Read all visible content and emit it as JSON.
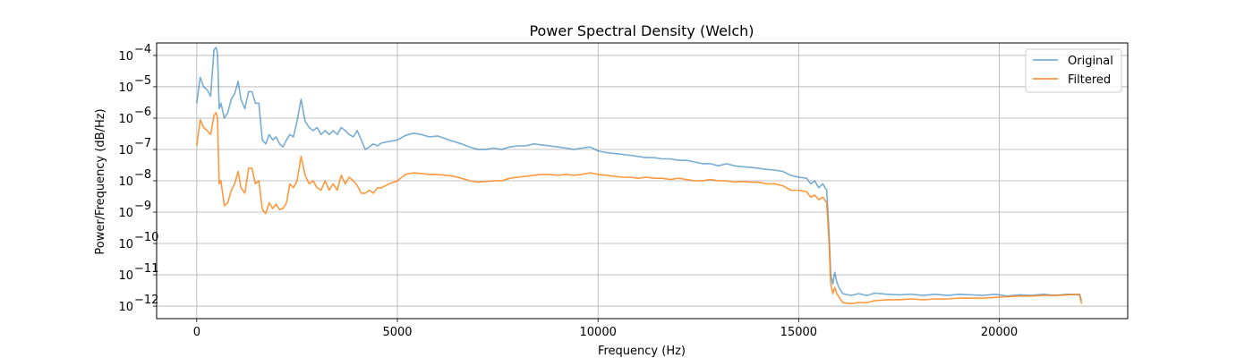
{
  "chart_data": {
    "type": "line",
    "title": "Power Spectral Density (Welch)",
    "xlabel": "Frequency (Hz)",
    "ylabel": "Power/Frequency (dB/Hz)",
    "xlim": [
      -1000,
      23200
    ],
    "ylim": [
      4e-13,
      0.00025
    ],
    "yscale": "log",
    "grid": true,
    "legend_position": "top-right",
    "x_ticks": [
      0,
      5000,
      10000,
      15000,
      20000
    ],
    "y_ticks": [
      {
        "value": 1e-12,
        "base": "10",
        "exp": "−12"
      },
      {
        "value": 1e-11,
        "base": "10",
        "exp": "−11"
      },
      {
        "value": 1e-10,
        "base": "10",
        "exp": "−10"
      },
      {
        "value": 1e-09,
        "base": "10",
        "exp": "−9"
      },
      {
        "value": 1e-08,
        "base": "10",
        "exp": "−8"
      },
      {
        "value": 1e-07,
        "base": "10",
        "exp": "−7"
      },
      {
        "value": 1e-06,
        "base": "10",
        "exp": "−6"
      },
      {
        "value": 1e-05,
        "base": "10",
        "exp": "−5"
      },
      {
        "value": 0.0001,
        "base": "10",
        "exp": "−4"
      }
    ],
    "series": [
      {
        "name": "Original",
        "color": "#1f77b4",
        "opacity": 0.6,
        "points": [
          [
            0,
            3e-06
          ],
          [
            86,
            2e-05
          ],
          [
            172,
            1e-05
          ],
          [
            258,
            8e-06
          ],
          [
            344,
            5e-06
          ],
          [
            430,
            0.00015
          ],
          [
            480,
            0.00018
          ],
          [
            516,
            0.00012
          ],
          [
            560,
            2e-06
          ],
          [
            602,
            3e-06
          ],
          [
            688,
            1e-06
          ],
          [
            774,
            1.5e-06
          ],
          [
            860,
            4e-06
          ],
          [
            946,
            6e-06
          ],
          [
            1032,
            1.5e-05
          ],
          [
            1100,
            4e-06
          ],
          [
            1200,
            2e-06
          ],
          [
            1290,
            7e-06
          ],
          [
            1376,
            7e-06
          ],
          [
            1462,
            3e-06
          ],
          [
            1548,
            3e-06
          ],
          [
            1634,
            2e-07
          ],
          [
            1720,
            1.5e-07
          ],
          [
            1806,
            3e-07
          ],
          [
            1892,
            2e-07
          ],
          [
            1978,
            2.5e-07
          ],
          [
            2064,
            1.5e-07
          ],
          [
            2150,
            1.2e-07
          ],
          [
            2236,
            2e-07
          ],
          [
            2322,
            3e-07
          ],
          [
            2408,
            2.5e-07
          ],
          [
            2500,
            8e-07
          ],
          [
            2600,
            4e-06
          ],
          [
            2700,
            8e-07
          ],
          [
            2800,
            5e-07
          ],
          [
            2900,
            4e-07
          ],
          [
            3000,
            5e-07
          ],
          [
            3100,
            3e-07
          ],
          [
            3200,
            4e-07
          ],
          [
            3300,
            3e-07
          ],
          [
            3400,
            4e-07
          ],
          [
            3500,
            3e-07
          ],
          [
            3600,
            5e-07
          ],
          [
            3700,
            4e-07
          ],
          [
            3800,
            3e-07
          ],
          [
            3900,
            2.5e-07
          ],
          [
            4000,
            4e-07
          ],
          [
            4100,
            2e-07
          ],
          [
            4200,
            1e-07
          ],
          [
            4300,
            1.2e-07
          ],
          [
            4400,
            1.5e-07
          ],
          [
            4500,
            1.3e-07
          ],
          [
            4600,
            1.6e-07
          ],
          [
            4800,
            1.8e-07
          ],
          [
            5000,
            2e-07
          ],
          [
            5200,
            2.8e-07
          ],
          [
            5400,
            3.3e-07
          ],
          [
            5600,
            3e-07
          ],
          [
            5800,
            2.5e-07
          ],
          [
            6000,
            2.7e-07
          ],
          [
            6200,
            2.2e-07
          ],
          [
            6400,
            1.8e-07
          ],
          [
            6600,
            1.5e-07
          ],
          [
            6800,
            1.2e-07
          ],
          [
            7000,
            1e-07
          ],
          [
            7200,
            1e-07
          ],
          [
            7400,
            1.1e-07
          ],
          [
            7600,
            1e-07
          ],
          [
            7800,
            1.2e-07
          ],
          [
            8000,
            1.3e-07
          ],
          [
            8200,
            1.3e-07
          ],
          [
            8400,
            1.5e-07
          ],
          [
            8600,
            1.4e-07
          ],
          [
            8800,
            1.3e-07
          ],
          [
            9000,
            1.2e-07
          ],
          [
            9200,
            1.1e-07
          ],
          [
            9400,
            1e-07
          ],
          [
            9600,
            1.1e-07
          ],
          [
            9800,
            1.2e-07
          ],
          [
            10000,
            9e-08
          ],
          [
            10200,
            8e-08
          ],
          [
            10400,
            7.5e-08
          ],
          [
            10600,
            7e-08
          ],
          [
            10800,
            6.5e-08
          ],
          [
            11000,
            6e-08
          ],
          [
            11200,
            5.5e-08
          ],
          [
            11400,
            5.5e-08
          ],
          [
            11600,
            5e-08
          ],
          [
            11800,
            5e-08
          ],
          [
            12000,
            4.5e-08
          ],
          [
            12200,
            4.5e-08
          ],
          [
            12400,
            4e-08
          ],
          [
            12600,
            3.5e-08
          ],
          [
            12800,
            3.5e-08
          ],
          [
            13000,
            3e-08
          ],
          [
            13200,
            3.5e-08
          ],
          [
            13400,
            3e-08
          ],
          [
            13600,
            2.8e-08
          ],
          [
            13800,
            2.7e-08
          ],
          [
            14000,
            2.5e-08
          ],
          [
            14200,
            2.3e-08
          ],
          [
            14400,
            2.2e-08
          ],
          [
            14600,
            2e-08
          ],
          [
            14800,
            1.5e-08
          ],
          [
            15000,
            1.3e-08
          ],
          [
            15200,
            1.2e-08
          ],
          [
            15300,
            8e-09
          ],
          [
            15400,
            1e-08
          ],
          [
            15500,
            6e-09
          ],
          [
            15600,
            8e-09
          ],
          [
            15700,
            5e-09
          ],
          [
            15760,
            2e-10
          ],
          [
            15800,
            1e-11
          ],
          [
            15850,
            5e-12
          ],
          [
            15900,
            1.2e-11
          ],
          [
            15950,
            6e-12
          ],
          [
            16000,
            4e-12
          ],
          [
            16100,
            2.5e-12
          ],
          [
            16300,
            2.2e-12
          ],
          [
            16500,
            2.5e-12
          ],
          [
            16700,
            2.2e-12
          ],
          [
            16900,
            2.6e-12
          ],
          [
            17200,
            2.4e-12
          ],
          [
            17500,
            2.3e-12
          ],
          [
            17800,
            2.4e-12
          ],
          [
            18100,
            2.2e-12
          ],
          [
            18400,
            2.4e-12
          ],
          [
            18700,
            2.2e-12
          ],
          [
            19000,
            2.4e-12
          ],
          [
            19300,
            2.3e-12
          ],
          [
            19600,
            2.2e-12
          ],
          [
            19900,
            2.4e-12
          ],
          [
            20200,
            2.1e-12
          ],
          [
            20500,
            2.3e-12
          ],
          [
            20800,
            2.2e-12
          ],
          [
            21100,
            2.4e-12
          ],
          [
            21400,
            2.2e-12
          ],
          [
            21700,
            2.4e-12
          ],
          [
            22000,
            2.3e-12
          ],
          [
            22050,
            1.5e-12
          ]
        ]
      },
      {
        "name": "Filtered",
        "color": "#ff7f0e",
        "opacity": 0.8,
        "points": [
          [
            0,
            1.3e-07
          ],
          [
            86,
            9e-07
          ],
          [
            172,
            5e-07
          ],
          [
            258,
            4e-07
          ],
          [
            344,
            3e-07
          ],
          [
            430,
            1.2e-06
          ],
          [
            480,
            1.5e-06
          ],
          [
            516,
            1e-06
          ],
          [
            560,
            8e-09
          ],
          [
            602,
            1e-08
          ],
          [
            688,
            1.6e-09
          ],
          [
            774,
            2e-09
          ],
          [
            860,
            5e-09
          ],
          [
            946,
            8e-09
          ],
          [
            1032,
            2e-08
          ],
          [
            1100,
            6e-09
          ],
          [
            1200,
            4e-09
          ],
          [
            1290,
            2.5e-08
          ],
          [
            1376,
            2.5e-08
          ],
          [
            1462,
            8e-09
          ],
          [
            1548,
            1e-08
          ],
          [
            1634,
            1.2e-09
          ],
          [
            1720,
            9e-10
          ],
          [
            1806,
            2e-09
          ],
          [
            1892,
            1.3e-09
          ],
          [
            1978,
            1.8e-09
          ],
          [
            2064,
            1.2e-09
          ],
          [
            2150,
            1.3e-09
          ],
          [
            2236,
            2e-09
          ],
          [
            2322,
            8e-09
          ],
          [
            2408,
            6e-09
          ],
          [
            2500,
            1e-08
          ],
          [
            2600,
            6e-08
          ],
          [
            2700,
            1.5e-08
          ],
          [
            2800,
            8e-09
          ],
          [
            2900,
            1e-08
          ],
          [
            3000,
            6e-09
          ],
          [
            3100,
            5e-09
          ],
          [
            3200,
            1e-08
          ],
          [
            3300,
            5e-09
          ],
          [
            3400,
            8e-09
          ],
          [
            3500,
            5e-09
          ],
          [
            3600,
            1.5e-08
          ],
          [
            3700,
            8e-09
          ],
          [
            3800,
            1.3e-08
          ],
          [
            3900,
            1e-08
          ],
          [
            4000,
            7e-09
          ],
          [
            4100,
            4e-09
          ],
          [
            4200,
            4e-09
          ],
          [
            4300,
            5e-09
          ],
          [
            4400,
            4e-09
          ],
          [
            4500,
            6e-09
          ],
          [
            4600,
            6e-09
          ],
          [
            4800,
            8e-09
          ],
          [
            5000,
            1e-08
          ],
          [
            5200,
            1.6e-08
          ],
          [
            5400,
            1.8e-08
          ],
          [
            5600,
            1.7e-08
          ],
          [
            5800,
            1.6e-08
          ],
          [
            6000,
            1.6e-08
          ],
          [
            6200,
            1.5e-08
          ],
          [
            6400,
            1.4e-08
          ],
          [
            6600,
            1.2e-08
          ],
          [
            6800,
            1e-08
          ],
          [
            7000,
            9e-09
          ],
          [
            7200,
            9.5e-09
          ],
          [
            7400,
            1e-08
          ],
          [
            7600,
            1e-08
          ],
          [
            7800,
            1.2e-08
          ],
          [
            8000,
            1.3e-08
          ],
          [
            8200,
            1.4e-08
          ],
          [
            8400,
            1.5e-08
          ],
          [
            8600,
            1.6e-08
          ],
          [
            8800,
            1.6e-08
          ],
          [
            9000,
            1.5e-08
          ],
          [
            9200,
            1.6e-08
          ],
          [
            9400,
            1.5e-08
          ],
          [
            9600,
            1.6e-08
          ],
          [
            9800,
            1.8e-08
          ],
          [
            10000,
            1.6e-08
          ],
          [
            10200,
            1.5e-08
          ],
          [
            10400,
            1.4e-08
          ],
          [
            10600,
            1.3e-08
          ],
          [
            10800,
            1.3e-08
          ],
          [
            11000,
            1.2e-08
          ],
          [
            11200,
            1.3e-08
          ],
          [
            11400,
            1.2e-08
          ],
          [
            11600,
            1.2e-08
          ],
          [
            11800,
            1.1e-08
          ],
          [
            12000,
            1.2e-08
          ],
          [
            12200,
            1.1e-08
          ],
          [
            12400,
            1e-08
          ],
          [
            12600,
            1e-08
          ],
          [
            12800,
            1.1e-08
          ],
          [
            13000,
            1e-08
          ],
          [
            13200,
            1e-08
          ],
          [
            13400,
            9e-09
          ],
          [
            13600,
            9.5e-09
          ],
          [
            13800,
            9e-09
          ],
          [
            14000,
            9e-09
          ],
          [
            14200,
            8e-09
          ],
          [
            14400,
            8e-09
          ],
          [
            14600,
            7e-09
          ],
          [
            14800,
            5e-09
          ],
          [
            15000,
            5e-09
          ],
          [
            15200,
            4.5e-09
          ],
          [
            15300,
            3e-09
          ],
          [
            15400,
            3.5e-09
          ],
          [
            15500,
            2.5e-09
          ],
          [
            15600,
            3e-09
          ],
          [
            15700,
            2e-09
          ],
          [
            15760,
            1e-10
          ],
          [
            15800,
            5e-12
          ],
          [
            15850,
            2.5e-12
          ],
          [
            15900,
            4e-12
          ],
          [
            15950,
            2.5e-12
          ],
          [
            16000,
            2e-12
          ],
          [
            16100,
            1.3e-12
          ],
          [
            16300,
            1.2e-12
          ],
          [
            16500,
            1.3e-12
          ],
          [
            16700,
            1.3e-12
          ],
          [
            16900,
            1.5e-12
          ],
          [
            17200,
            1.6e-12
          ],
          [
            17500,
            1.6e-12
          ],
          [
            17800,
            1.7e-12
          ],
          [
            18100,
            1.6e-12
          ],
          [
            18400,
            1.7e-12
          ],
          [
            18700,
            1.7e-12
          ],
          [
            19000,
            1.8e-12
          ],
          [
            19300,
            1.8e-12
          ],
          [
            19600,
            1.8e-12
          ],
          [
            19900,
            1.9e-12
          ],
          [
            20200,
            2e-12
          ],
          [
            20500,
            2.1e-12
          ],
          [
            20800,
            2.1e-12
          ],
          [
            21100,
            2.2e-12
          ],
          [
            21400,
            2.2e-12
          ],
          [
            21700,
            2.3e-12
          ],
          [
            22000,
            2.4e-12
          ],
          [
            22050,
            1.2e-12
          ]
        ]
      }
    ]
  }
}
